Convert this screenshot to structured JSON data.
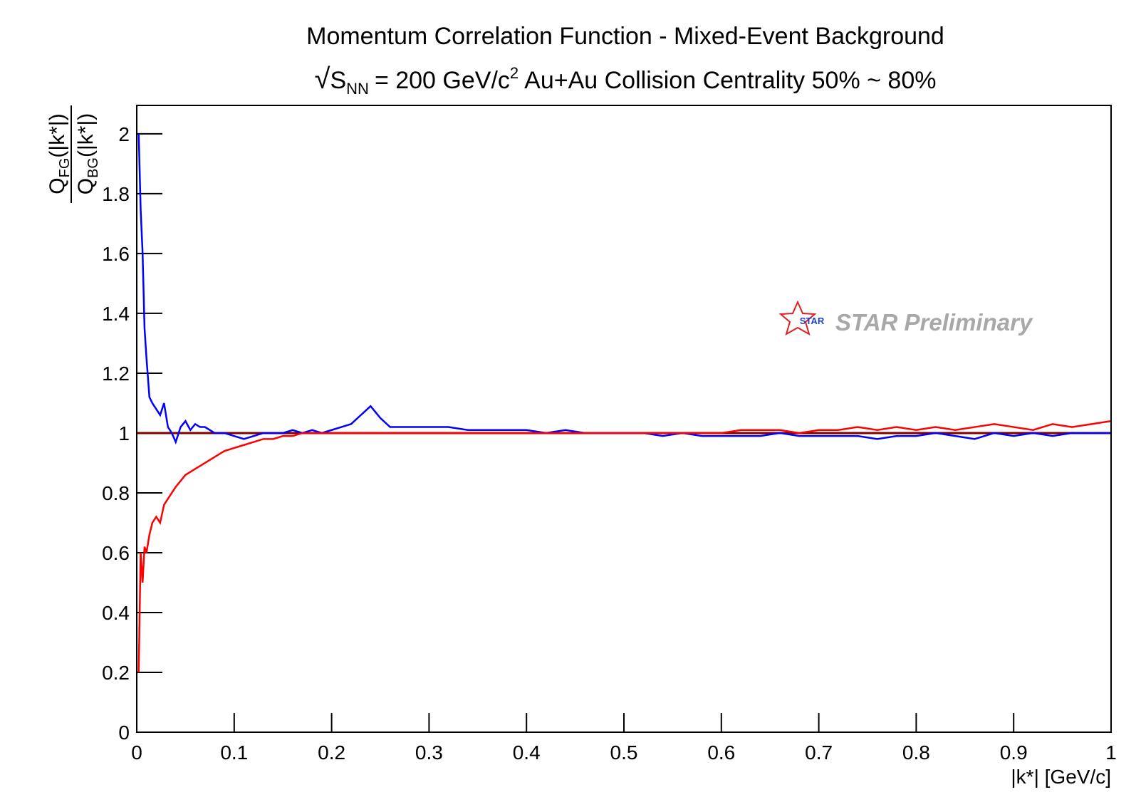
{
  "chart_data": {
    "type": "line",
    "title": "Momentum Correlation Function - Mixed-Event Background",
    "subtitle": {
      "root": "√",
      "base": "S",
      "sub": "NN",
      "text1": "= 200 GeV/c",
      "sup": "2",
      "text2": "Au+Au Collision Centrality 50% ~ 80%"
    },
    "y_label": {
      "numerator": {
        "base": "Q",
        "sub": "FG",
        "arg": "(|k*|)"
      },
      "denominator": {
        "base": "Q",
        "sub": "BG",
        "arg": "(|k*|)"
      }
    },
    "x_label": "|k*| [GeV/c]",
    "watermark": {
      "logo_text": "STAR",
      "text": "STAR Preliminary"
    },
    "xlim": [
      0,
      1
    ],
    "ylim": [
      0,
      2.095
    ],
    "xticks": [
      0,
      0.1,
      0.2,
      0.3,
      0.4,
      0.5,
      0.6,
      0.7,
      0.8,
      0.9,
      1
    ],
    "yticks": [
      0,
      0.2,
      0.4,
      0.6,
      0.8,
      1,
      1.2,
      1.4,
      1.6,
      1.8,
      2
    ],
    "grid": false,
    "reference_line": {
      "value": 1,
      "color": "#800000"
    },
    "x": [
      0.002,
      0.004,
      0.006,
      0.008,
      0.01,
      0.013,
      0.016,
      0.02,
      0.024,
      0.028,
      0.032,
      0.036,
      0.04,
      0.045,
      0.05,
      0.055,
      0.06,
      0.065,
      0.07,
      0.08,
      0.09,
      0.1,
      0.11,
      0.12,
      0.13,
      0.14,
      0.15,
      0.16,
      0.17,
      0.18,
      0.19,
      0.2,
      0.21,
      0.22,
      0.23,
      0.24,
      0.25,
      0.26,
      0.27,
      0.28,
      0.29,
      0.3,
      0.32,
      0.34,
      0.36,
      0.38,
      0.4,
      0.42,
      0.44,
      0.46,
      0.48,
      0.5,
      0.52,
      0.54,
      0.56,
      0.58,
      0.6,
      0.62,
      0.64,
      0.66,
      0.68,
      0.7,
      0.72,
      0.74,
      0.76,
      0.78,
      0.8,
      0.82,
      0.84,
      0.86,
      0.88,
      0.9,
      0.92,
      0.94,
      0.96,
      0.98,
      1
    ],
    "series": [
      {
        "color": "#0000ff",
        "values": [
          2.0,
          1.75,
          1.6,
          1.35,
          1.25,
          1.12,
          1.1,
          1.08,
          1.06,
          1.1,
          1.02,
          1.0,
          0.97,
          1.02,
          1.04,
          1.01,
          1.03,
          1.02,
          1.02,
          1.0,
          1.0,
          0.99,
          0.98,
          0.99,
          1.0,
          1.0,
          1.0,
          1.01,
          1.0,
          1.01,
          1.0,
          1.01,
          1.02,
          1.03,
          1.06,
          1.09,
          1.05,
          1.02,
          1.02,
          1.02,
          1.02,
          1.02,
          1.02,
          1.01,
          1.01,
          1.01,
          1.01,
          1.0,
          1.01,
          1.0,
          1.0,
          1.0,
          1.0,
          0.99,
          1.0,
          0.99,
          0.99,
          0.99,
          0.99,
          1.0,
          0.99,
          0.99,
          0.99,
          0.99,
          0.98,
          0.99,
          0.99,
          1.0,
          0.99,
          0.98,
          1.0,
          0.99,
          1.0,
          0.99,
          1.0,
          1.0,
          1.0
        ]
      },
      {
        "color": "#ff0000",
        "values": [
          0.2,
          0.6,
          0.5,
          0.62,
          0.6,
          0.66,
          0.7,
          0.72,
          0.7,
          0.76,
          0.78,
          0.8,
          0.82,
          0.84,
          0.86,
          0.87,
          0.88,
          0.89,
          0.9,
          0.92,
          0.94,
          0.95,
          0.96,
          0.97,
          0.98,
          0.98,
          0.99,
          0.99,
          1.0,
          1.0,
          1.0,
          1.0,
          1.0,
          1.0,
          1.0,
          1.0,
          1.0,
          1.0,
          1.0,
          1.0,
          1.0,
          1.0,
          1.0,
          1.0,
          1.0,
          1.0,
          1.0,
          1.0,
          1.0,
          1.0,
          1.0,
          1.0,
          1.0,
          1.0,
          1.0,
          1.0,
          1.0,
          1.01,
          1.01,
          1.01,
          1.0,
          1.01,
          1.01,
          1.02,
          1.01,
          1.02,
          1.01,
          1.02,
          1.01,
          1.02,
          1.03,
          1.02,
          1.01,
          1.03,
          1.02,
          1.03,
          1.04
        ]
      }
    ]
  }
}
